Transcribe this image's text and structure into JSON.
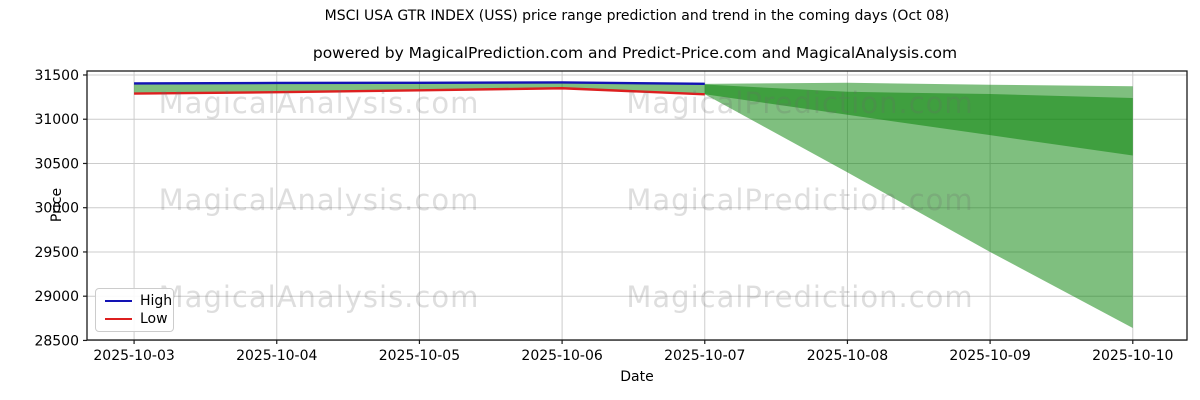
{
  "title": "MSCI USA GTR INDEX (USS) price range prediction and trend in the coming days (Oct 08)",
  "subtitle": "powered by MagicalPrediction.com and Predict-Price.com and MagicalAnalysis.com",
  "watermarks": {
    "left": "MagicalAnalysis.com",
    "right": "MagicalPrediction.com"
  },
  "legend": {
    "items": [
      {
        "label": "High",
        "color": "#1212b4"
      },
      {
        "label": "Low",
        "color": "#dd1f1f"
      }
    ]
  },
  "chart_data": {
    "type": "line",
    "title": "MSCI USA GTR INDEX (USS) price range prediction and trend in the coming days (Oct 08)",
    "xlabel": "Date",
    "ylabel": "Price",
    "x_categories": [
      "2025-10-03",
      "2025-10-04",
      "2025-10-05",
      "2025-10-06",
      "2025-10-07",
      "2025-10-08",
      "2025-10-09",
      "2025-10-10"
    ],
    "yticks": [
      28500,
      29000,
      29500,
      30000,
      30500,
      31000,
      31500
    ],
    "ylim": [
      28505,
      31545
    ],
    "xlim": [
      -0.33,
      7.38
    ],
    "grid": true,
    "grid_color": "#cccccc",
    "spine_color": "#1a1a1a",
    "band_fill_color": "rgba(0,128,0,0.5)",
    "legend_position": "lower left",
    "series": [
      {
        "name": "High",
        "color": "#1212b4",
        "x": [
          0,
          1,
          2,
          3,
          4
        ],
        "values": [
          31405,
          31410,
          31412,
          31416,
          31400
        ]
      },
      {
        "name": "Low",
        "color": "#dd1f1f",
        "x": [
          0,
          1,
          2,
          3,
          4
        ],
        "values": [
          31290,
          31305,
          31327,
          31350,
          31282
        ]
      }
    ],
    "bands": [
      {
        "name": "history-high-low-range",
        "x": [
          0,
          1,
          2,
          3,
          4
        ],
        "upper": [
          31405,
          31410,
          31412,
          31416,
          31400
        ],
        "lower": [
          31290,
          31305,
          31327,
          31350,
          31282
        ]
      },
      {
        "name": "prediction-outer-range",
        "x": [
          4,
          5,
          6,
          7
        ],
        "upper": [
          31400,
          31412,
          31390,
          31372
        ],
        "lower": [
          31282,
          30400,
          29500,
          28640
        ]
      },
      {
        "name": "prediction-inner-range",
        "x": [
          4,
          5,
          6,
          7
        ],
        "upper": [
          31392,
          31310,
          31285,
          31240
        ],
        "lower": [
          31282,
          31050,
          30820,
          30590
        ]
      }
    ]
  }
}
